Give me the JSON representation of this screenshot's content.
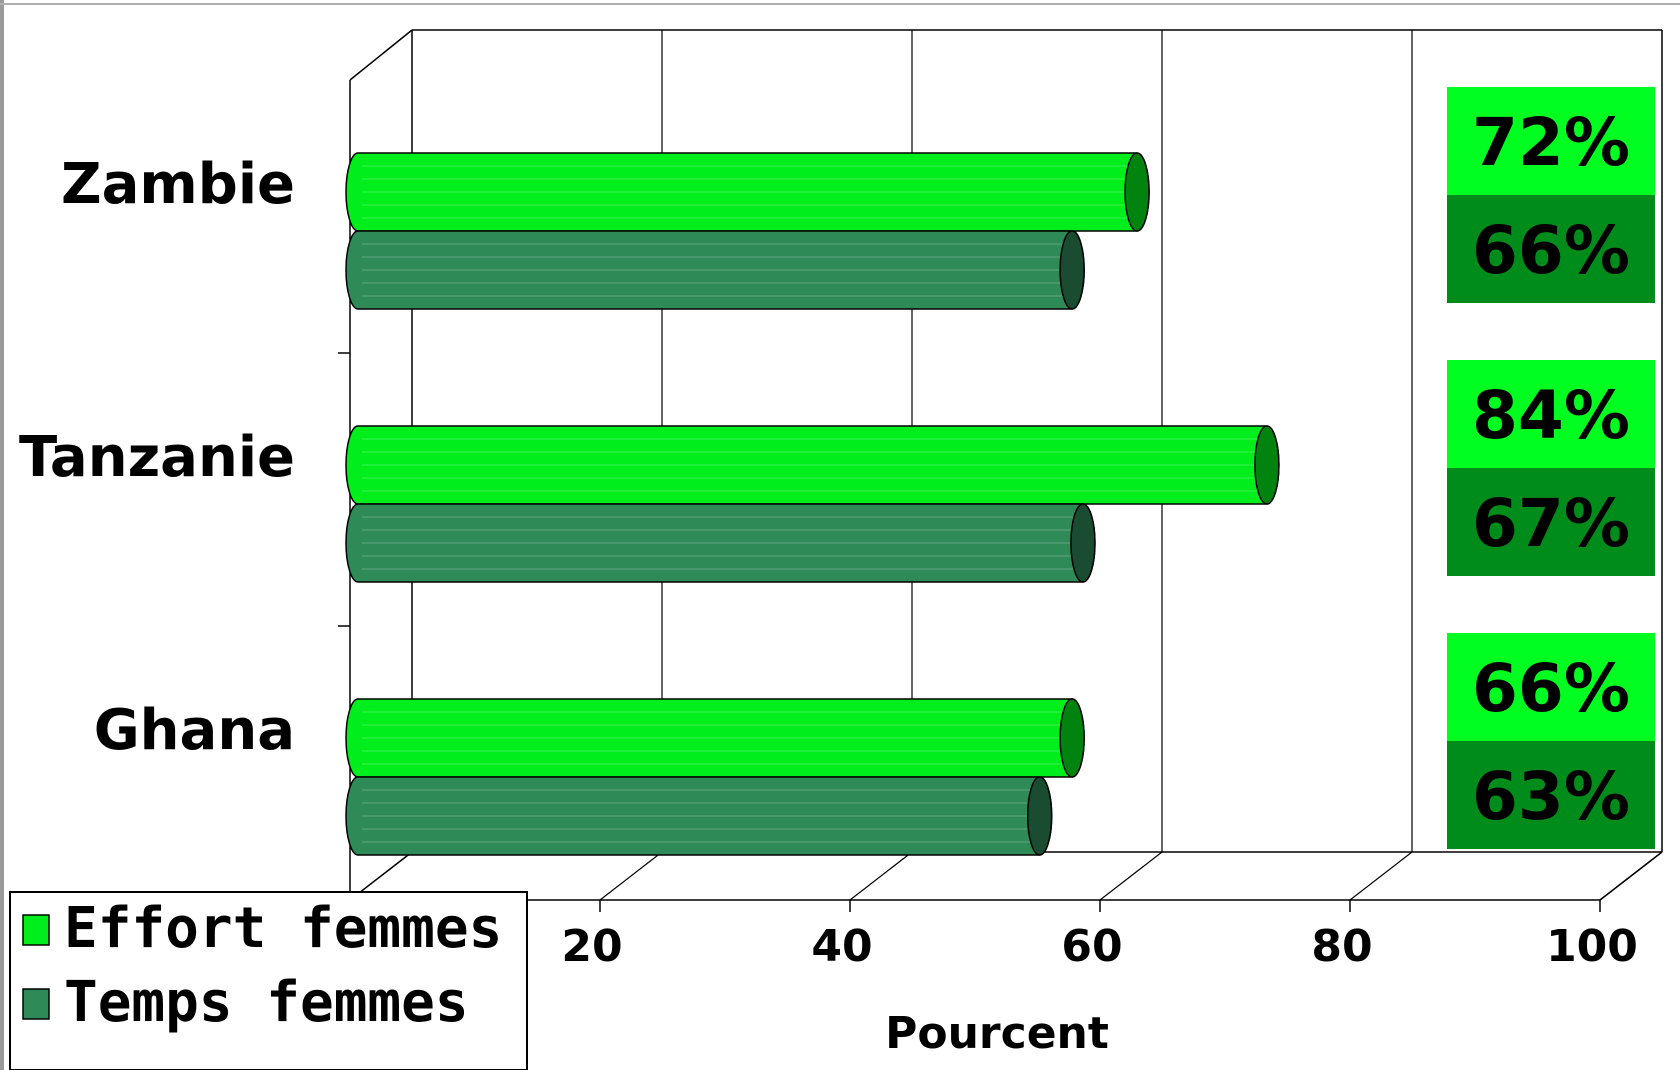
{
  "chart_data": {
    "type": "bar",
    "orientation": "horizontal",
    "categories": [
      "Zambie",
      "Tanzanie",
      "Ghana"
    ],
    "series": [
      {
        "name": "Effort femmes",
        "values": [
          72,
          84,
          66
        ],
        "color": "#00ee1c"
      },
      {
        "name": "Temps femmes",
        "values": [
          66,
          67,
          63
        ],
        "color": "#2e8b57"
      }
    ],
    "value_labels": [
      [
        "72%",
        "66%"
      ],
      [
        "84%",
        "67%"
      ],
      [
        "66%",
        "63%"
      ]
    ],
    "xlabel": "Pourcent",
    "xlim": [
      0,
      100
    ],
    "x_ticks": [
      "20",
      "40",
      "60",
      "80",
      "100"
    ],
    "legend_position": "bottom-left",
    "grid": true,
    "style": "3d-cylinder"
  }
}
